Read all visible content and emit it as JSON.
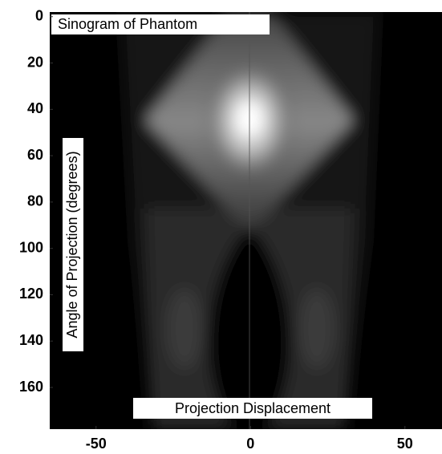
{
  "chart_data": {
    "type": "image",
    "title": "Sinogram of Phantom",
    "xlabel": "Projection Displacement",
    "ylabel": "Angle of Projection (degrees)",
    "xlim": [
      -65,
      62
    ],
    "ylim": [
      -2,
      178
    ],
    "y_inverted": true,
    "xticks": [
      -50,
      0,
      50
    ],
    "yticks": [
      0,
      20,
      40,
      60,
      80,
      100,
      120,
      140,
      160
    ],
    "colormap": "gray"
  }
}
